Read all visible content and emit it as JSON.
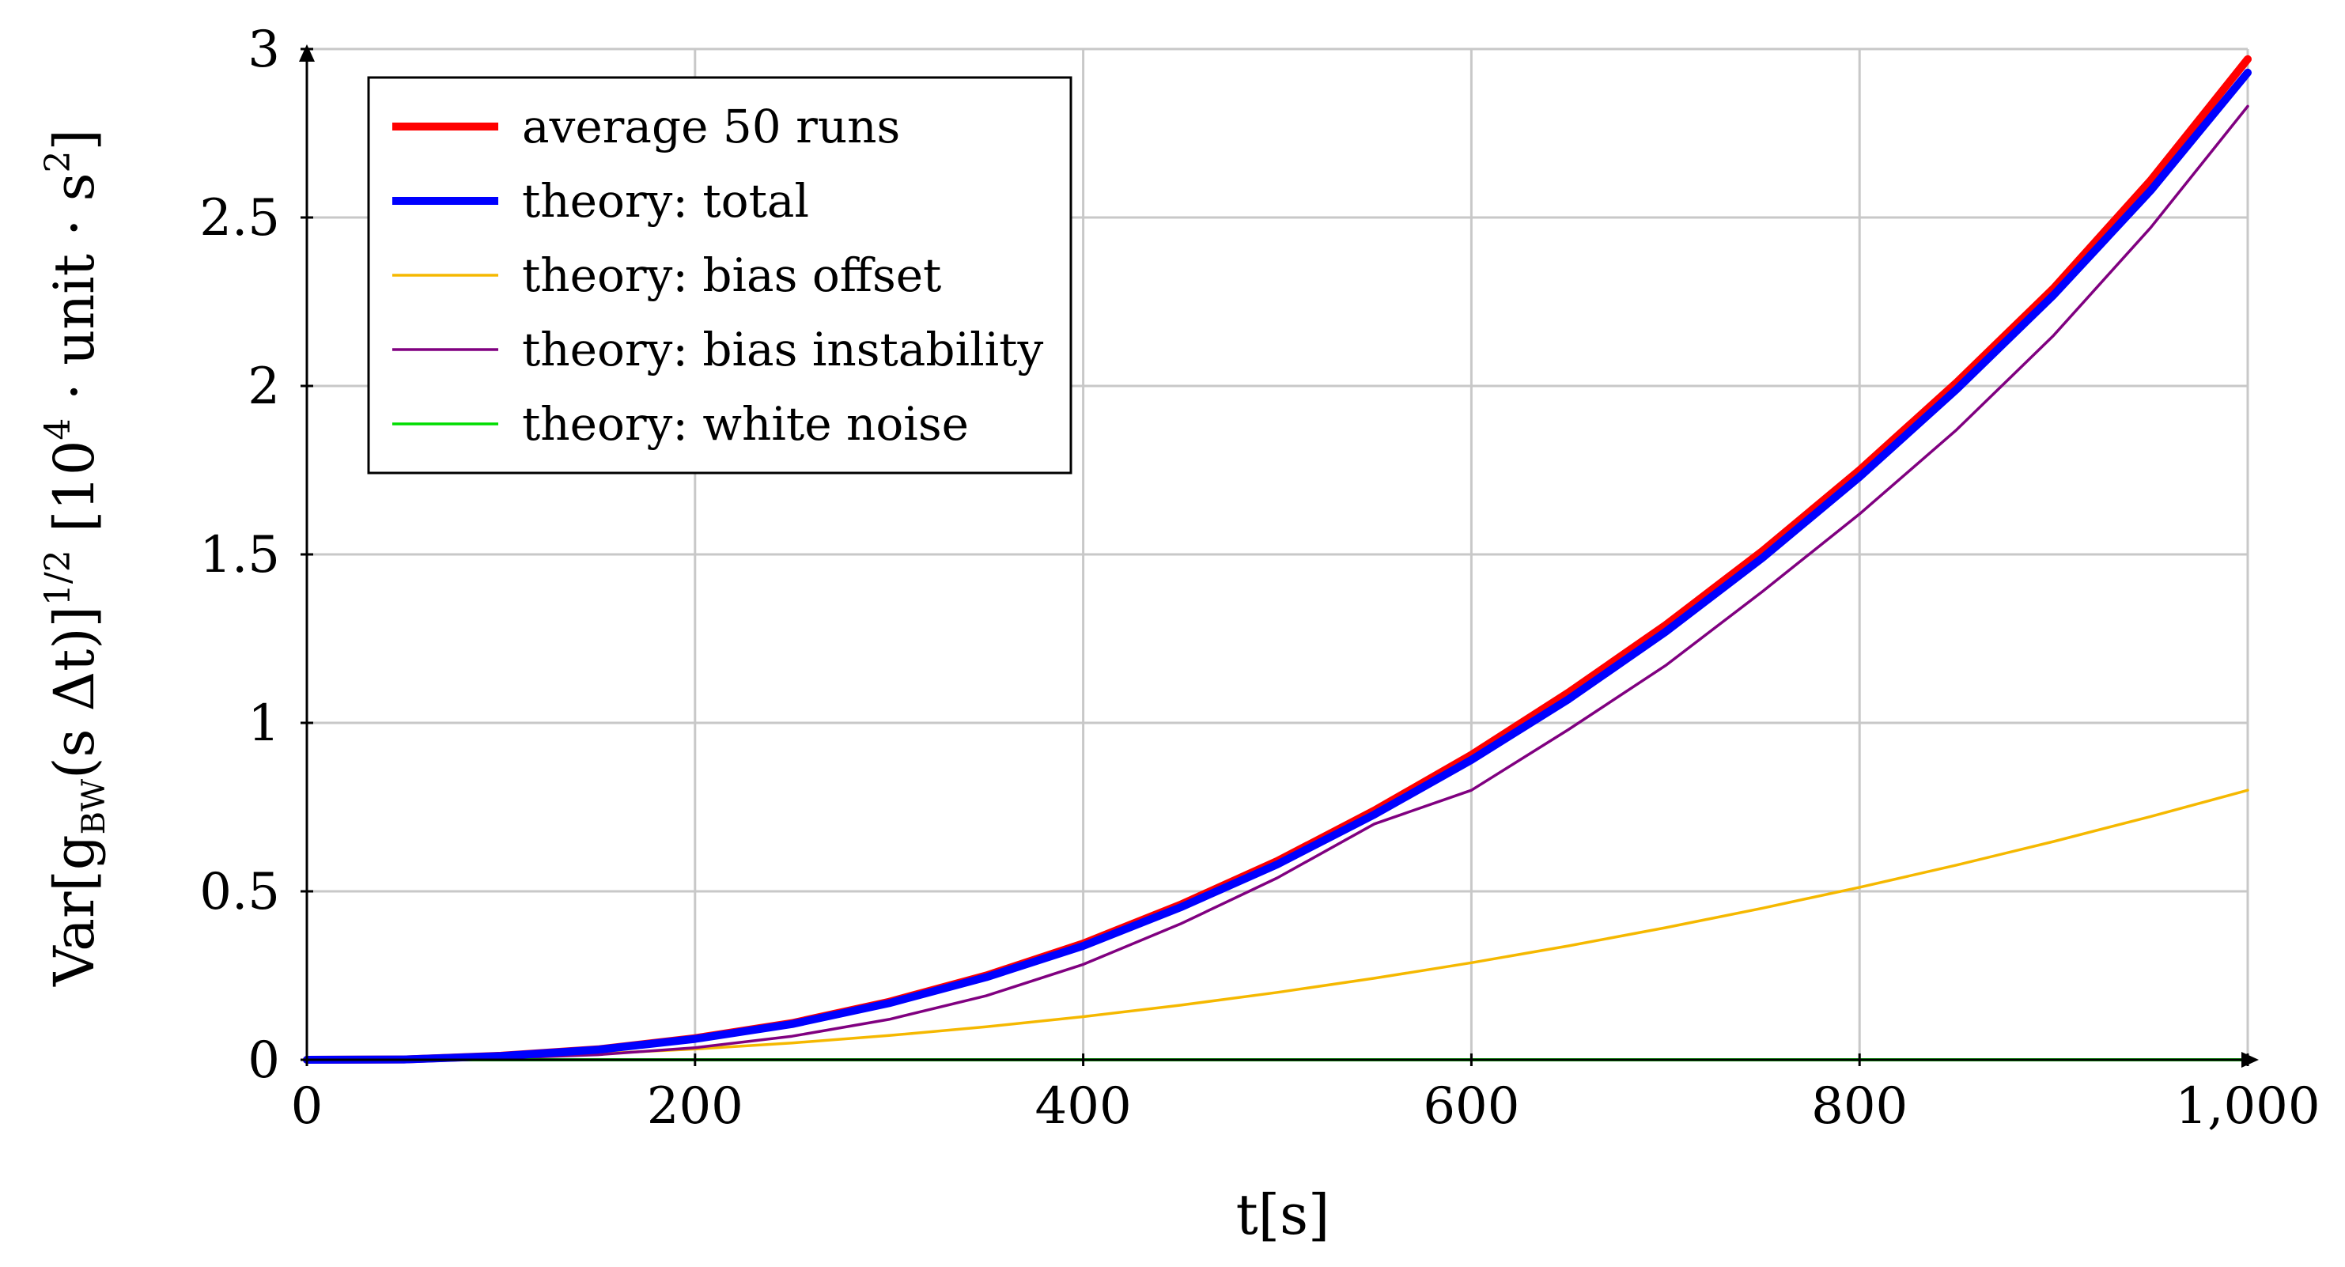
{
  "chart_data": {
    "type": "line",
    "title": "",
    "xlabel": "t[s]",
    "ylabel_parts": {
      "var": "Var",
      "g": "g",
      "sub": "BW",
      "arg": "(s Δt)",
      "exp": "1/2",
      "unit_lead": "10",
      "unit_exp": "4",
      "unit_mid": " · unit · s",
      "unit_exp2": "2"
    },
    "xlim": [
      0,
      1000
    ],
    "ylim": [
      0,
      3
    ],
    "x_ticks": [
      0,
      200,
      400,
      600,
      800,
      1000
    ],
    "x_tick_labels": [
      "0",
      "200",
      "400",
      "600",
      "800",
      "1,000"
    ],
    "y_ticks": [
      0,
      0.5,
      1,
      1.5,
      2,
      2.5,
      3
    ],
    "y_tick_labels": [
      "0",
      "0.5",
      "1",
      "1.5",
      "2",
      "2.5",
      "3"
    ],
    "grid": true,
    "legend_position": "top-left",
    "x": [
      0,
      50,
      100,
      150,
      200,
      250,
      300,
      350,
      400,
      450,
      500,
      550,
      600,
      650,
      700,
      750,
      800,
      850,
      900,
      950,
      1000
    ],
    "series": [
      {
        "name": "average 50 runs",
        "color": "#ff0000",
        "values": [
          0,
          0.001,
          0.012,
          0.031,
          0.064,
          0.109,
          0.172,
          0.25,
          0.345,
          0.46,
          0.59,
          0.74,
          0.905,
          1.09,
          1.29,
          1.51,
          1.75,
          2.01,
          2.29,
          2.61,
          2.97
        ]
      },
      {
        "name": "theory: total",
        "color": "#0000ff",
        "values": [
          0,
          0.001,
          0.011,
          0.03,
          0.062,
          0.106,
          0.168,
          0.245,
          0.338,
          0.452,
          0.58,
          0.728,
          0.89,
          1.07,
          1.27,
          1.49,
          1.73,
          1.99,
          2.27,
          2.58,
          2.93
        ]
      },
      {
        "name": "theory: bias offset",
        "color": "#f5b800",
        "values": [
          0,
          0.002,
          0.008,
          0.018,
          0.032,
          0.05,
          0.072,
          0.098,
          0.128,
          0.162,
          0.2,
          0.242,
          0.288,
          0.338,
          0.392,
          0.45,
          0.512,
          0.578,
          0.648,
          0.722,
          0.8
        ]
      },
      {
        "name": "theory: bias instability",
        "color": "#800080",
        "values": [
          0,
          0.0005,
          0.0045,
          0.015,
          0.036,
          0.07,
          0.12,
          0.19,
          0.283,
          0.403,
          0.54,
          0.7,
          0.8,
          0.98,
          1.17,
          1.39,
          1.62,
          1.87,
          2.15,
          2.47,
          2.83
        ]
      },
      {
        "name": "theory: white noise",
        "color": "#00dd00",
        "values": [
          0,
          0,
          0,
          0,
          0,
          0,
          0,
          0,
          0,
          0,
          0,
          0,
          0,
          0,
          0,
          0,
          0,
          0,
          0,
          0,
          0
        ]
      }
    ]
  }
}
